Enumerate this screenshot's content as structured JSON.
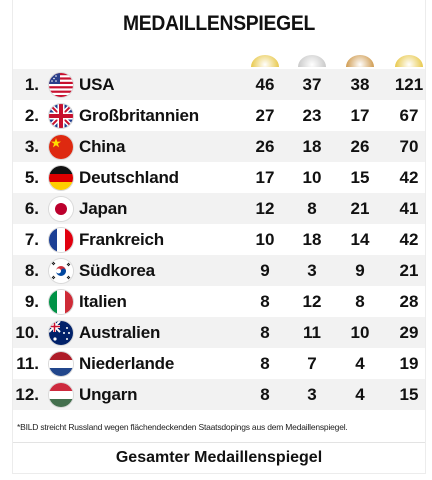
{
  "title": "MEDAILLENSPIEGEL",
  "medal_colors": {
    "gold": "#e8c84a",
    "silver": "#c9c9c9",
    "bronze": "#cf9a4e",
    "total": "#e8c84a"
  },
  "rows": [
    {
      "rank": "1.",
      "flag": "usa-flag-icon",
      "country": "USA",
      "gold": "46",
      "silver": "37",
      "bronze": "38",
      "total": "121"
    },
    {
      "rank": "2.",
      "flag": "uk-flag-icon",
      "country": "Großbritannien",
      "gold": "27",
      "silver": "23",
      "bronze": "17",
      "total": "67"
    },
    {
      "rank": "3.",
      "flag": "china-flag-icon",
      "country": "China",
      "gold": "26",
      "silver": "18",
      "bronze": "26",
      "total": "70"
    },
    {
      "rank": "5.",
      "flag": "germany-flag-icon",
      "country": "Deutschland",
      "gold": "17",
      "silver": "10",
      "bronze": "15",
      "total": "42"
    },
    {
      "rank": "6.",
      "flag": "japan-flag-icon",
      "country": "Japan",
      "gold": "12",
      "silver": "8",
      "bronze": "21",
      "total": "41"
    },
    {
      "rank": "7.",
      "flag": "france-flag-icon",
      "country": "Frankreich",
      "gold": "10",
      "silver": "18",
      "bronze": "14",
      "total": "42"
    },
    {
      "rank": "8.",
      "flag": "south-korea-flag-icon",
      "country": "Südkorea",
      "gold": "9",
      "silver": "3",
      "bronze": "9",
      "total": "21"
    },
    {
      "rank": "9.",
      "flag": "italy-flag-icon",
      "country": "Italien",
      "gold": "8",
      "silver": "12",
      "bronze": "8",
      "total": "28"
    },
    {
      "rank": "10.",
      "flag": "australia-flag-icon",
      "country": "Australien",
      "gold": "8",
      "silver": "11",
      "bronze": "10",
      "total": "29"
    },
    {
      "rank": "11.",
      "flag": "netherlands-flag-icon",
      "country": "Niederlande",
      "gold": "8",
      "silver": "7",
      "bronze": "4",
      "total": "19"
    },
    {
      "rank": "12.",
      "flag": "hungary-flag-icon",
      "country": "Ungarn",
      "gold": "8",
      "silver": "3",
      "bronze": "4",
      "total": "15"
    }
  ],
  "footnote": "*BILD streicht Russland wegen flächendeckenden Staatsdopings aus dem Medaillenspiegel.",
  "bottom_link": "Gesamter Medaillenspiegel"
}
